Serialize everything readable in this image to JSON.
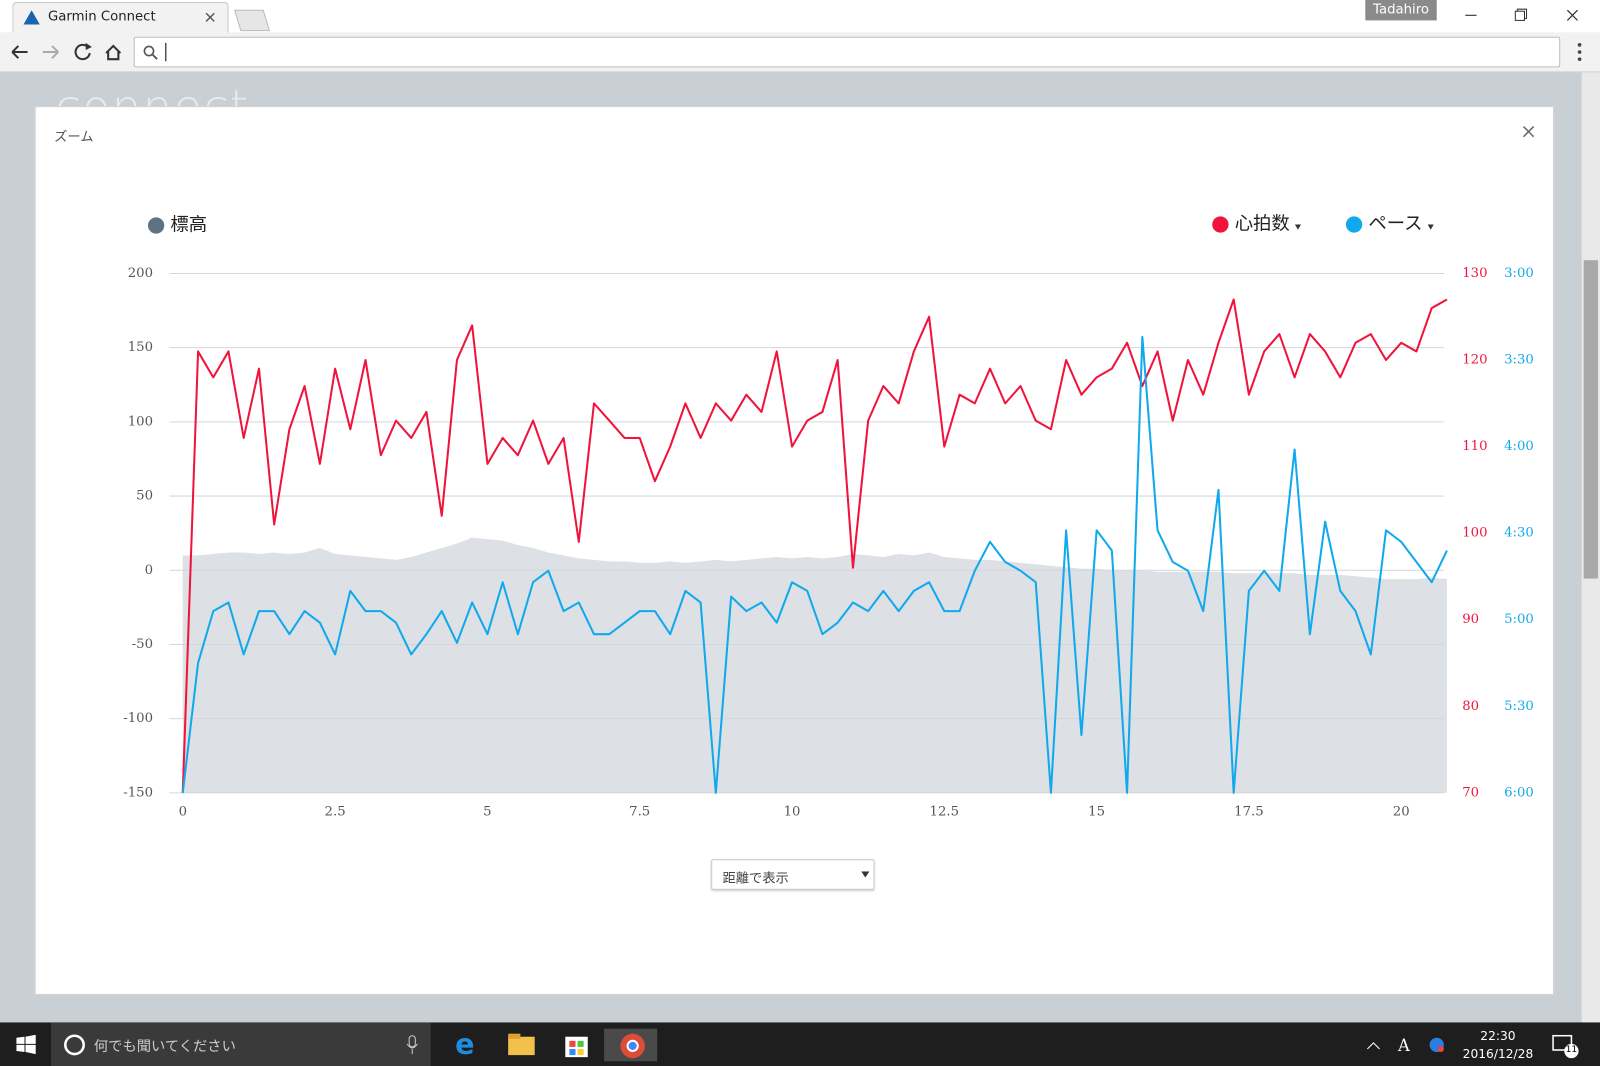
{
  "browser": {
    "tab_title": "Garmin Connect",
    "profile": "Tadahiro"
  },
  "page": {
    "logo": "connect"
  },
  "modal": {
    "title": "ズーム",
    "view_select": "距離で表示"
  },
  "chart_data": {
    "type": "line",
    "x": [
      0,
      0.25,
      0.5,
      0.75,
      1,
      1.25,
      1.5,
      1.75,
      2,
      2.25,
      2.5,
      2.75,
      3,
      3.25,
      3.5,
      3.75,
      4,
      4.25,
      4.5,
      4.75,
      5,
      5.25,
      5.5,
      5.75,
      6,
      6.25,
      6.5,
      6.75,
      7,
      7.25,
      7.5,
      7.75,
      8,
      8.25,
      8.5,
      8.75,
      9,
      9.25,
      9.5,
      9.75,
      10,
      10.25,
      10.5,
      10.75,
      11,
      11.25,
      11.5,
      11.75,
      12,
      12.25,
      12.5,
      12.75,
      13,
      13.25,
      13.5,
      13.75,
      14,
      14.25,
      14.5,
      14.75,
      15,
      15.25,
      15.5,
      15.75,
      16,
      16.25,
      16.5,
      16.75,
      17,
      17.25,
      17.5,
      17.75,
      18,
      18.25,
      18.5,
      18.75,
      19,
      19.25,
      19.5,
      19.75,
      20,
      20.25,
      20.5,
      20.75
    ],
    "xlim": [
      -0.22,
      20.7
    ],
    "xticks": [
      0,
      2.5,
      5,
      7.5,
      10,
      12.5,
      15,
      17.5,
      20
    ],
    "ylim": [
      -150,
      200
    ],
    "yticks": [
      -150,
      -100,
      -50,
      0,
      50,
      100,
      150,
      200
    ],
    "y2lim": [
      70,
      130
    ],
    "y2ticks": [
      70,
      80,
      90,
      100,
      110,
      120,
      130
    ],
    "y3lim": [
      360,
      180
    ],
    "y3ticks": [
      {
        "value": 180,
        "label": "3:00"
      },
      {
        "value": 210,
        "label": "3:30"
      },
      {
        "value": 240,
        "label": "4:00"
      },
      {
        "value": 270,
        "label": "4:30"
      },
      {
        "value": 300,
        "label": "5:00"
      },
      {
        "value": 330,
        "label": "5:30"
      },
      {
        "value": 360,
        "label": "6:00"
      }
    ],
    "grid": true,
    "series": [
      {
        "name": "標高",
        "color": "#5f7282",
        "fill": "#dde0e4",
        "type": "area",
        "values": [
          10,
          10,
          11,
          12,
          12,
          11,
          12,
          11,
          12,
          15,
          11,
          10,
          9,
          8,
          7,
          9,
          12,
          15,
          18,
          22,
          21,
          20,
          17,
          15,
          12,
          10,
          8,
          7,
          6,
          6,
          5,
          5,
          6,
          5,
          6,
          7,
          6,
          7,
          8,
          9,
          8,
          9,
          8,
          9,
          11,
          10,
          9,
          11,
          10,
          12,
          9,
          8,
          7,
          7,
          6,
          5,
          4,
          3,
          2,
          1,
          1,
          0,
          0,
          0,
          -1,
          -1,
          -1,
          -1,
          -1,
          -2,
          -2,
          -2,
          -2,
          -2,
          -3,
          -3,
          -3,
          -4,
          -5,
          -6,
          -6,
          -6,
          -5,
          -6
        ]
      },
      {
        "name": "心拍数",
        "color": "#f0143c",
        "axis": "y2",
        "values": [
          70,
          121,
          118,
          121,
          111,
          119,
          101,
          112,
          117,
          108,
          119,
          112,
          120,
          109,
          113,
          111,
          114,
          102,
          120,
          124,
          108,
          111,
          109,
          113,
          108,
          111,
          99,
          115,
          113,
          111,
          111,
          106,
          110,
          115,
          111,
          115,
          113,
          116,
          114,
          121,
          110,
          113,
          114,
          120,
          96,
          113,
          117,
          115,
          121,
          125,
          110,
          116,
          115,
          119,
          115,
          117,
          113,
          112,
          120,
          116,
          118,
          119,
          122,
          117,
          121,
          113,
          120,
          116,
          122,
          127,
          116,
          121,
          123,
          118,
          123,
          121,
          118,
          122,
          123,
          120,
          122,
          121,
          126,
          127
        ]
      },
      {
        "name": "ペース",
        "color": "#11a9ed",
        "axis": "y3",
        "values": [
          360,
          315,
          297,
          294,
          312,
          297,
          297,
          305,
          297,
          301,
          312,
          290,
          297,
          297,
          301,
          312,
          305,
          297,
          308,
          294,
          305,
          287,
          305,
          287,
          283,
          297,
          294,
          305,
          305,
          301,
          297,
          297,
          305,
          290,
          294,
          360,
          292,
          297,
          294,
          301,
          287,
          290,
          305,
          301,
          294,
          297,
          290,
          297,
          290,
          287,
          297,
          297,
          283,
          273,
          280,
          283,
          287,
          360,
          269,
          340,
          269,
          276,
          360,
          202,
          269,
          280,
          283,
          297,
          255,
          360,
          290,
          283,
          290,
          241,
          305,
          266,
          290,
          297,
          312,
          269,
          273,
          280,
          287,
          276
        ]
      }
    ]
  },
  "taskbar": {
    "search": "何でも聞いてください",
    "time": "22:30",
    "date": "2016/12/28",
    "notifications": "11"
  }
}
